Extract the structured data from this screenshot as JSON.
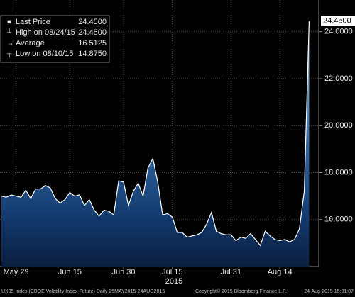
{
  "chart_data": {
    "type": "area",
    "legend": [
      {
        "name": "Last Price",
        "value": "24.4500"
      },
      {
        "name": "High on 08/24/15",
        "value": "24.4500"
      },
      {
        "name": "Average",
        "value": "16.5125"
      },
      {
        "name": "Low on 08/10/15",
        "value": "14.8750"
      }
    ],
    "categories": [
      null,
      null,
      null,
      "May 29",
      null,
      null,
      null,
      null,
      null,
      null,
      null,
      null,
      null,
      null,
      "Jun 15",
      null,
      null,
      null,
      null,
      null,
      null,
      null,
      null,
      null,
      null,
      "Jun 30",
      null,
      null,
      null,
      null,
      null,
      null,
      null,
      null,
      null,
      "Jul 15",
      null,
      null,
      null,
      null,
      null,
      null,
      null,
      null,
      null,
      null,
      null,
      "Jul 31",
      null,
      null,
      null,
      null,
      null,
      null,
      null,
      null,
      null,
      "Aug 14",
      null,
      null,
      null,
      null,
      null,
      null
    ],
    "x_year": "2015",
    "values": [
      17.0,
      16.95,
      17.05,
      17.0,
      16.95,
      17.25,
      16.9,
      17.3,
      17.3,
      17.45,
      17.35,
      16.9,
      16.7,
      16.85,
      17.15,
      17.0,
      17.05,
      16.6,
      16.85,
      16.4,
      16.15,
      16.4,
      16.35,
      16.2,
      17.65,
      17.6,
      16.6,
      17.2,
      17.55,
      17.0,
      18.2,
      18.6,
      17.6,
      16.2,
      16.25,
      16.1,
      15.45,
      15.45,
      15.25,
      15.3,
      15.35,
      15.45,
      15.8,
      16.3,
      15.5,
      15.4,
      15.35,
      15.35,
      15.1,
      15.25,
      15.2,
      15.4,
      15.15,
      14.9,
      15.5,
      15.3,
      15.15,
      15.1,
      15.15,
      15.05,
      15.15,
      15.6,
      17.2,
      24.45
    ],
    "color": "#ffffff",
    "ylim": [
      14.0,
      25.35
    ],
    "yticks": [
      {
        "value": 16,
        "label": "16.0000"
      },
      {
        "value": 18,
        "label": "18.0000"
      },
      {
        "value": 20,
        "label": "20.0000"
      },
      {
        "value": 22,
        "label": "22.0000"
      },
      {
        "value": 24,
        "label": "24.0000"
      }
    ],
    "grid": true,
    "footer": {
      "left": "UX05 Index (CBOE Volatility Index Future)  Daily 25MAY2015-24AUG2015",
      "center": "Copyright© 2015 Bloomberg Finance L.P.",
      "right": "24-Aug-2015 15:01:07"
    }
  }
}
